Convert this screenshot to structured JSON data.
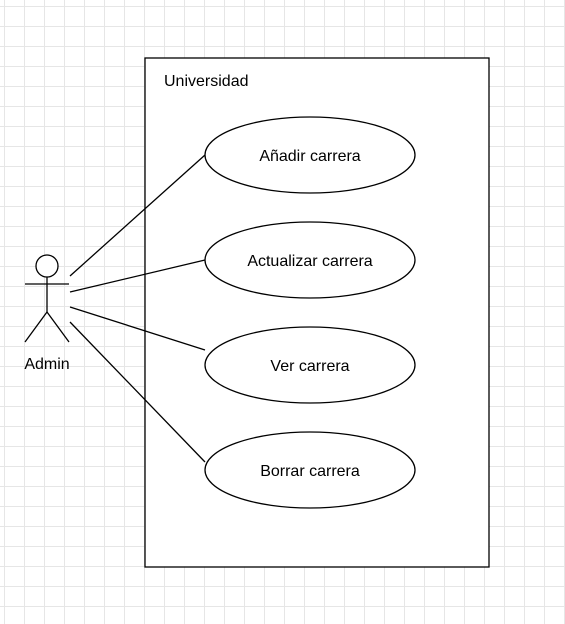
{
  "diagram": {
    "type": "use-case",
    "system": {
      "label": "Universidad"
    },
    "actor": {
      "label": "Admin"
    },
    "use_cases": [
      {
        "label": "Añadir carrera"
      },
      {
        "label": "Actualizar carrera"
      },
      {
        "label": "Ver carrera"
      },
      {
        "label": "Borrar carrera"
      }
    ],
    "associations": [
      {
        "from": "Admin",
        "to": "Añadir carrera"
      },
      {
        "from": "Admin",
        "to": "Actualizar carrera"
      },
      {
        "from": "Admin",
        "to": "Ver carrera"
      },
      {
        "from": "Admin",
        "to": "Borrar carrera"
      }
    ],
    "colors": {
      "stroke": "#000000",
      "fill": "#ffffff",
      "grid": "#e6e6e6"
    }
  }
}
